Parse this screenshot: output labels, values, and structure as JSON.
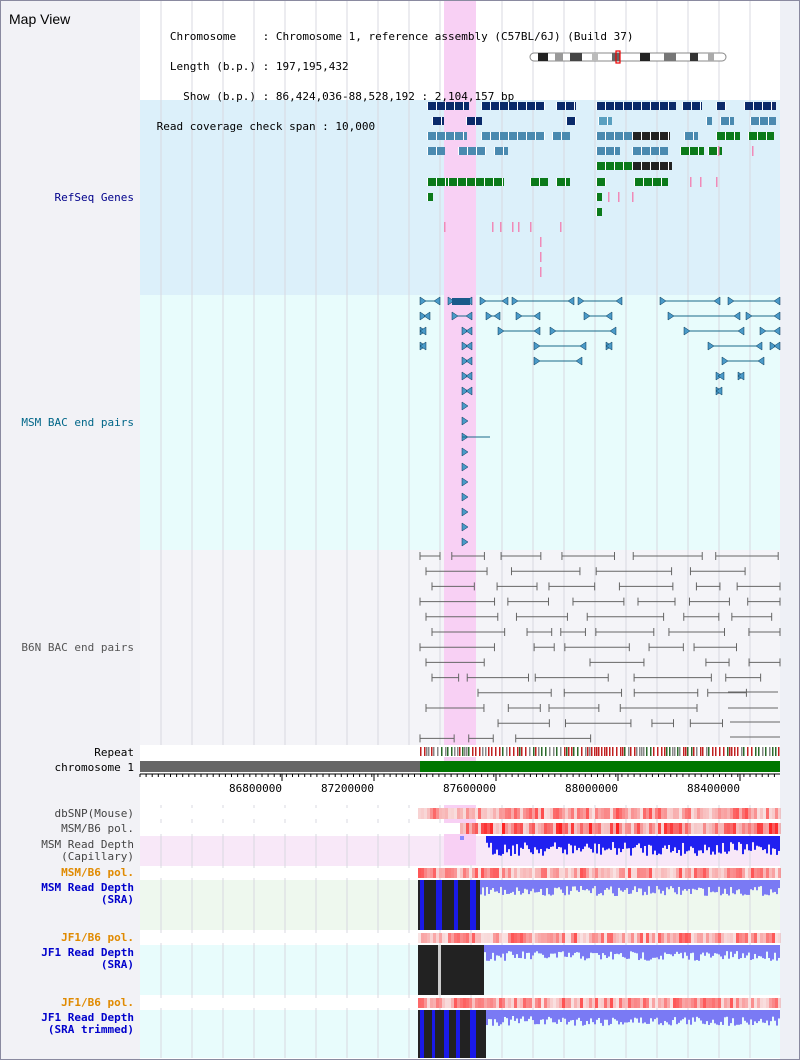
{
  "header": {
    "title": "Map View",
    "info_lines": [
      "   Chromosome    : Chromosome 1, reference assembly (C57BL/6J) (Build 37)",
      "   Length (b.p.) : 197,195,432",
      "     Show (b.p.) : 86,424,036-88,528,192 : 2,104,157 bp",
      " Read coverage check span : 10,000"
    ]
  },
  "tracks": {
    "refseq": {
      "label": "RefSeq Genes",
      "color": "#00008b"
    },
    "msm_bac": {
      "label": "MSM BAC end pairs",
      "color": "#006688"
    },
    "b6n_bac": {
      "label": "B6N BAC end pairs",
      "color": "#555555"
    },
    "repeat": {
      "label": "Repeat"
    },
    "chromosome": {
      "label": "chromosome 1"
    },
    "dbsnp": {
      "label": "dbSNP(Mouse)"
    },
    "msm_pol": {
      "label": "MSM/B6 pol."
    },
    "msm_depth_cap": {
      "label": "MSM Read Depth\n(Capillary)"
    },
    "msm_pol2": {
      "label": "MSM/B6 pol.",
      "color": "#e08a00"
    },
    "msm_depth_sra": {
      "label": "MSM Read Depth\n(SRA)",
      "color": "#0000cc"
    },
    "jf1_pol": {
      "label": "JF1/B6 pol.",
      "color": "#e08a00"
    },
    "jf1_depth_sra": {
      "label": "JF1 Read Depth\n(SRA)",
      "color": "#0000cc"
    },
    "jf1_pol2": {
      "label": "JF1/B6 pol.",
      "color": "#e08a00"
    },
    "jf1_depth_trim": {
      "label": "JF1 Read Depth\n(SRA trimmed)",
      "color": "#0000cc"
    }
  },
  "axis": {
    "ticks": [
      "86800000",
      "87200000",
      "87600000",
      "88000000",
      "88400000"
    ]
  },
  "colors": {
    "refseq_bg": "#dcf0fa",
    "msm_bac_bg": "#e8fcfc",
    "b6n_bac_bg": "#f4f4f8",
    "highlight": "#f8d0f4",
    "chrom_gray": "#666666",
    "chrom_green": "#007700",
    "depth_blue": "#2020f0"
  }
}
